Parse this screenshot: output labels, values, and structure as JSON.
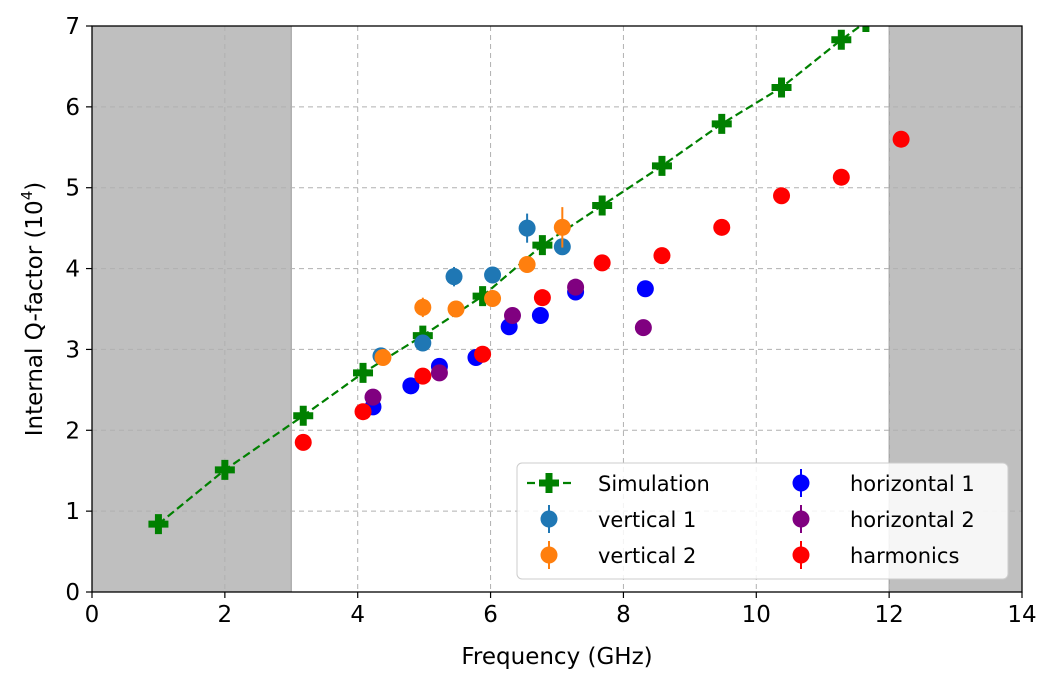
{
  "chart_data": {
    "type": "scatter",
    "xlabel": "Frequency (GHz)",
    "ylabel_prefix": "Internal Q-factor (10",
    "ylabel_exponent": "4",
    "ylabel_suffix": ")",
    "xlim": [
      0,
      14
    ],
    "ylim": [
      0,
      7
    ],
    "x_ticks": [
      0,
      2,
      4,
      6,
      8,
      10,
      12,
      14
    ],
    "y_ticks": [
      0,
      1,
      2,
      3,
      4,
      5,
      6,
      7
    ],
    "x_tick_labels": [
      "0",
      "2",
      "4",
      "6",
      "8",
      "10",
      "12",
      "14"
    ],
    "y_tick_labels": [
      "0",
      "1",
      "2",
      "3",
      "4",
      "5",
      "6",
      "7"
    ],
    "grid": true,
    "shaded_regions": [
      [
        0,
        3
      ],
      [
        12,
        14
      ]
    ],
    "legend_position": "lower right",
    "series": [
      {
        "name": "Simulation",
        "color": "#008000",
        "marker": "plus",
        "line": "dashed",
        "points": [
          [
            1,
            0.84
          ],
          [
            2,
            1.51
          ],
          [
            3.18,
            2.18
          ],
          [
            4.08,
            2.71
          ],
          [
            4.98,
            3.17
          ],
          [
            5.88,
            3.66
          ],
          [
            6.78,
            4.29
          ],
          [
            7.68,
            4.78
          ],
          [
            8.58,
            5.27
          ],
          [
            9.48,
            5.79
          ],
          [
            10.38,
            6.24
          ],
          [
            11.28,
            6.83
          ],
          [
            11.65,
            7.05
          ]
        ]
      },
      {
        "name": "vertical 1",
        "color": "#1f77b4",
        "marker": "circle",
        "points": [
          [
            4.35,
            2.92
          ],
          [
            4.98,
            3.08
          ],
          [
            5.45,
            3.9
          ],
          [
            6.03,
            3.92
          ],
          [
            6.55,
            4.5
          ],
          [
            7.08,
            4.27
          ]
        ],
        "errors": [
          0.05,
          0.05,
          0.12,
          0.07,
          0.18,
          0.07
        ]
      },
      {
        "name": "vertical 2",
        "color": "#ff7f0e",
        "marker": "circle",
        "points": [
          [
            4.38,
            2.9
          ],
          [
            4.98,
            3.52
          ],
          [
            5.48,
            3.5
          ],
          [
            6.03,
            3.63
          ],
          [
            6.55,
            4.05
          ],
          [
            7.08,
            4.51
          ]
        ],
        "errors": [
          0.05,
          0.12,
          0.07,
          0.1,
          0.05,
          0.25
        ]
      },
      {
        "name": "horizontal 1",
        "color": "#0000ff",
        "marker": "circle",
        "points": [
          [
            4.23,
            2.29
          ],
          [
            4.8,
            2.55
          ],
          [
            5.23,
            2.79
          ],
          [
            5.78,
            2.9
          ],
          [
            6.28,
            3.28
          ],
          [
            6.75,
            3.42
          ],
          [
            7.28,
            3.71
          ],
          [
            8.33,
            3.75
          ]
        ],
        "errors": [
          0.05,
          0.05,
          0.05,
          0.05,
          0.05,
          0.05,
          0.05,
          0.05
        ]
      },
      {
        "name": "horizontal 2",
        "color": "#800080",
        "marker": "circle",
        "points": [
          [
            4.23,
            2.41
          ],
          [
            5.23,
            2.71
          ],
          [
            6.33,
            3.42
          ],
          [
            7.28,
            3.77
          ],
          [
            8.3,
            3.27
          ]
        ],
        "errors": [
          0.05,
          0.05,
          0.05,
          0.05,
          0.05
        ]
      },
      {
        "name": "harmonics",
        "color": "#ff0000",
        "marker": "circle",
        "points": [
          [
            3.18,
            1.85
          ],
          [
            4.08,
            2.23
          ],
          [
            4.98,
            2.67
          ],
          [
            5.88,
            2.94
          ],
          [
            6.78,
            3.64
          ],
          [
            7.68,
            4.07
          ],
          [
            8.58,
            4.16
          ],
          [
            9.48,
            4.51
          ],
          [
            10.38,
            4.9
          ],
          [
            11.28,
            5.13
          ],
          [
            12.18,
            5.6
          ]
        ],
        "errors": [
          0.05,
          0.05,
          0.05,
          0.05,
          0.05,
          0.05,
          0.05,
          0.05,
          0.05,
          0.05,
          0.05
        ]
      }
    ]
  }
}
